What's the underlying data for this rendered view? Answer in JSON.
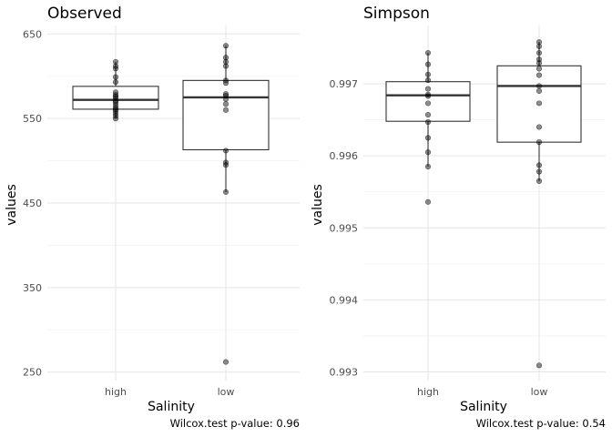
{
  "chart_data": [
    {
      "type": "boxplot",
      "title": "Observed",
      "xlabel": "Salinity",
      "ylabel": "values",
      "caption": "Wilcox.test p-value: 0.96",
      "categories": [
        "high",
        "low"
      ],
      "ylim": [
        240,
        660
      ],
      "y_ticks": [
        250,
        350,
        450,
        550,
        650
      ],
      "y_tick_labels": [
        "250",
        "350",
        "450",
        "550",
        "650"
      ],
      "grid": true,
      "boxes": [
        {
          "category": "high",
          "min": 550,
          "q1": 561,
          "median": 572,
          "q3": 588,
          "max": 617
        },
        {
          "category": "low",
          "min": 463,
          "q1": 513,
          "median": 575,
          "q3": 595,
          "max": 636
        }
      ],
      "points": [
        {
          "category": "high",
          "values": [
            550,
            553,
            556,
            559,
            561,
            563,
            566,
            569,
            571,
            574,
            576,
            578,
            581,
            593,
            599,
            609,
            612,
            617
          ]
        },
        {
          "category": "low",
          "values": [
            262,
            463,
            495,
            498,
            512,
            560,
            567,
            573,
            577,
            579,
            592,
            595,
            612,
            617,
            622,
            636
          ]
        }
      ]
    },
    {
      "type": "boxplot",
      "title": "Simpson",
      "xlabel": "Salinity",
      "ylabel": "values",
      "caption": "Wilcox.test p-value: 0.54",
      "categories": [
        "high",
        "low"
      ],
      "ylim": [
        0.99288,
        0.99781
      ],
      "y_ticks": [
        0.993,
        0.994,
        0.995,
        0.996,
        0.997
      ],
      "y_tick_labels": [
        "0.993",
        "0.994",
        "0.995",
        "0.996",
        "0.997"
      ],
      "grid": true,
      "boxes": [
        {
          "category": "high",
          "min": 0.99585,
          "q1": 0.99648,
          "median": 0.99684,
          "q3": 0.99703,
          "max": 0.99743
        },
        {
          "category": "low",
          "min": 0.99565,
          "q1": 0.99619,
          "median": 0.99697,
          "q3": 0.99725,
          "max": 0.99758
        }
      ],
      "points": [
        {
          "category": "high",
          "values": [
            0.99536,
            0.99585,
            0.99605,
            0.99625,
            0.99647,
            0.99657,
            0.99673,
            0.99683,
            0.99685,
            0.99693,
            0.99705,
            0.99713,
            0.99727,
            0.99743
          ]
        },
        {
          "category": "low",
          "values": [
            0.99309,
            0.99565,
            0.99578,
            0.99587,
            0.99619,
            0.9964,
            0.99673,
            0.9969,
            0.99697,
            0.99712,
            0.99721,
            0.99729,
            0.99734,
            0.99743,
            0.99752,
            0.99758
          ]
        }
      ]
    }
  ]
}
